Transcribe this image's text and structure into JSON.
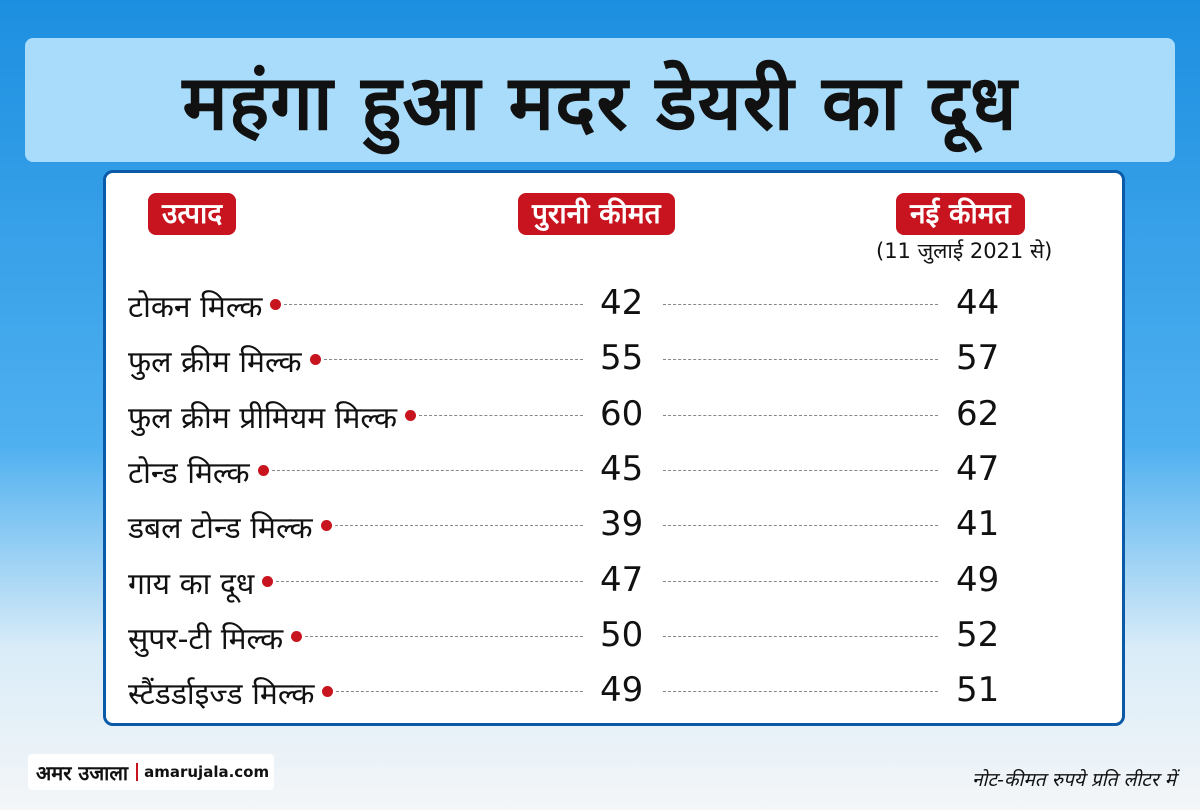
{
  "header": {
    "title": "महंगा हुआ मदर डेयरी का दूध"
  },
  "table": {
    "columns": [
      "उत्पाद",
      "पुरानी कीमत",
      "नई कीमत"
    ],
    "date_note": "(11 जुलाई 2021 से)",
    "rows": [
      [
        "टोकन मिल्क",
        "42",
        "44"
      ],
      [
        "फुल क्रीम मिल्क",
        "55",
        "57"
      ],
      [
        "फुल क्रीम प्रीमियम मिल्क",
        "60",
        "62"
      ],
      [
        "टोन्ड मिल्क",
        "45",
        "47"
      ],
      [
        "डबल टोन्ड मिल्क",
        "39",
        "41"
      ],
      [
        "गाय का दूध",
        "47",
        "49"
      ],
      [
        "सुपर-टी मिल्क",
        "50",
        "52"
      ],
      [
        "स्टैंडर्डाइज्ड मिल्क",
        "49",
        "51"
      ]
    ]
  },
  "footer": {
    "brand": "अमर उजाला",
    "site": "amarujala.com",
    "note": "नोट-कीमत रुपये प्रति लीटर में"
  }
}
